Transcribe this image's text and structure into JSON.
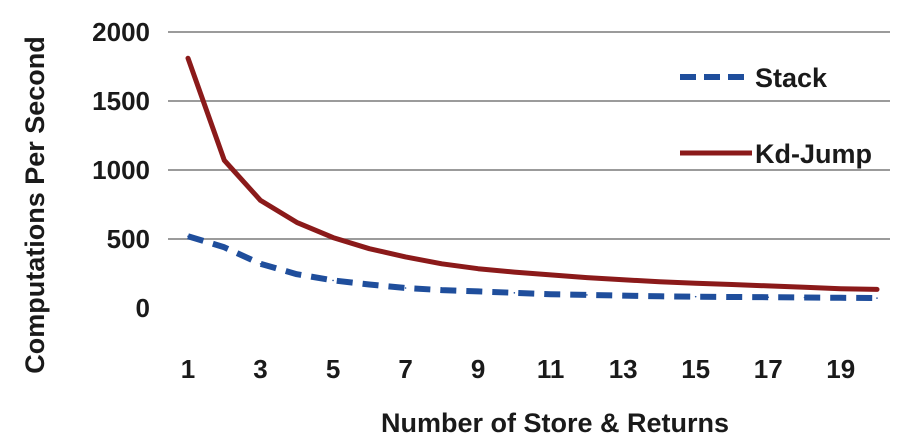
{
  "chart_data": {
    "type": "line",
    "x": [
      1,
      2,
      3,
      4,
      5,
      6,
      7,
      8,
      9,
      10,
      11,
      12,
      13,
      14,
      15,
      16,
      17,
      18,
      19,
      20
    ],
    "x_ticks": [
      1,
      3,
      5,
      7,
      9,
      11,
      13,
      15,
      17,
      19
    ],
    "y_ticks": [
      0,
      500,
      1000,
      1500,
      2000
    ],
    "ylim": [
      0,
      2000
    ],
    "xlabel": "Number of Store & Returns",
    "ylabel": "Computations Per Second",
    "grid": true,
    "legend_position": "right",
    "series": [
      {
        "name": "Stack",
        "style": "dashed",
        "color": "#1f4e9c",
        "values": [
          520,
          440,
          320,
          245,
          200,
          170,
          145,
          130,
          120,
          110,
          100,
          95,
          90,
          85,
          82,
          80,
          78,
          76,
          74,
          72
        ]
      },
      {
        "name": "Kd-Jump",
        "style": "solid",
        "color": "#8b1a1a",
        "values": [
          1810,
          1070,
          780,
          620,
          510,
          430,
          370,
          320,
          285,
          260,
          240,
          220,
          205,
          190,
          180,
          170,
          160,
          150,
          140,
          135
        ]
      }
    ]
  }
}
